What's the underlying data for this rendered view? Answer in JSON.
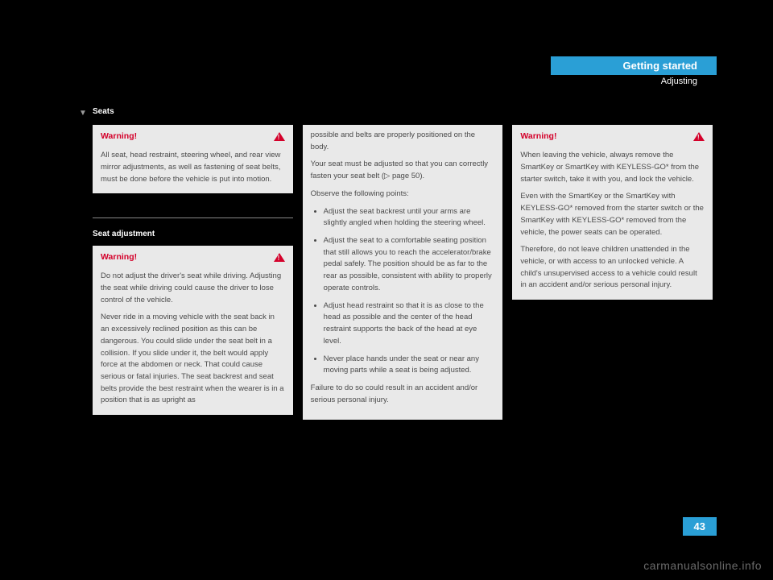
{
  "header": {
    "title": "Getting started",
    "subtitle": "Adjusting"
  },
  "section": {
    "marker": "▼",
    "title": "Seats"
  },
  "col1": {
    "warn1": {
      "title": "Warning!",
      "body": "All seat, head restraint, steering wheel, and rear view mirror adjustments, as well as fastening of seat belts, must be done before the vehicle is put into motion."
    },
    "subsection": "Seat adjustment",
    "warn2": {
      "title": "Warning!",
      "p1": "Do not adjust the driver's seat while driving. Adjusting the seat while driving could cause the driver to lose control of the vehicle.",
      "p2": "Never ride in a moving vehicle with the seat back in an excessively reclined position as this can be dangerous. You could slide under the seat belt in a collision. If you slide under it, the belt would apply force at the abdomen or neck. That could cause serious or fatal injuries. The seat backrest and seat belts provide the best restraint when the wearer is in a position that is as upright as"
    }
  },
  "col2": {
    "p1": "possible and belts are properly positioned on the body.",
    "p2a": "Your seat must be adjusted so that you can correctly fasten your seat belt (",
    "p2ref": "▷ page 50",
    "p2b": ").",
    "p3": "Observe the following points:",
    "li1": "Adjust the seat backrest until your arms are slightly angled when holding the steering wheel.",
    "li2": "Adjust the seat to a comfortable seating position that still allows you to reach the accelerator/brake pedal safely. The position should be as far to the rear as possible, consistent with ability to properly operate controls.",
    "li3": "Adjust head restraint so that it is as close to the head as possible and the center of the head restraint supports the back of the head at eye level.",
    "li4": "Never place hands under the seat or near any moving parts while a seat is being adjusted.",
    "p4": "Failure to do so could result in an accident and/or serious personal injury."
  },
  "col3": {
    "warn": {
      "title": "Warning!",
      "p1": "When leaving the vehicle, always remove the SmartKey or SmartKey with KEYLESS-GO* from the starter switch, take it with you, and lock the vehicle.",
      "p2": "Even with the SmartKey or the SmartKey with KEYLESS-GO* removed from the starter switch or the SmartKey with KEYLESS-GO* removed from the vehicle, the power seats can be operated.",
      "p3": "Therefore, do not leave children unattended in the vehicle, or with access to an unlocked vehicle. A child's unsupervised access to a vehicle could result in an accident and/or serious personal injury."
    }
  },
  "pagenum": "43",
  "watermark": "carmanualsonline.info"
}
